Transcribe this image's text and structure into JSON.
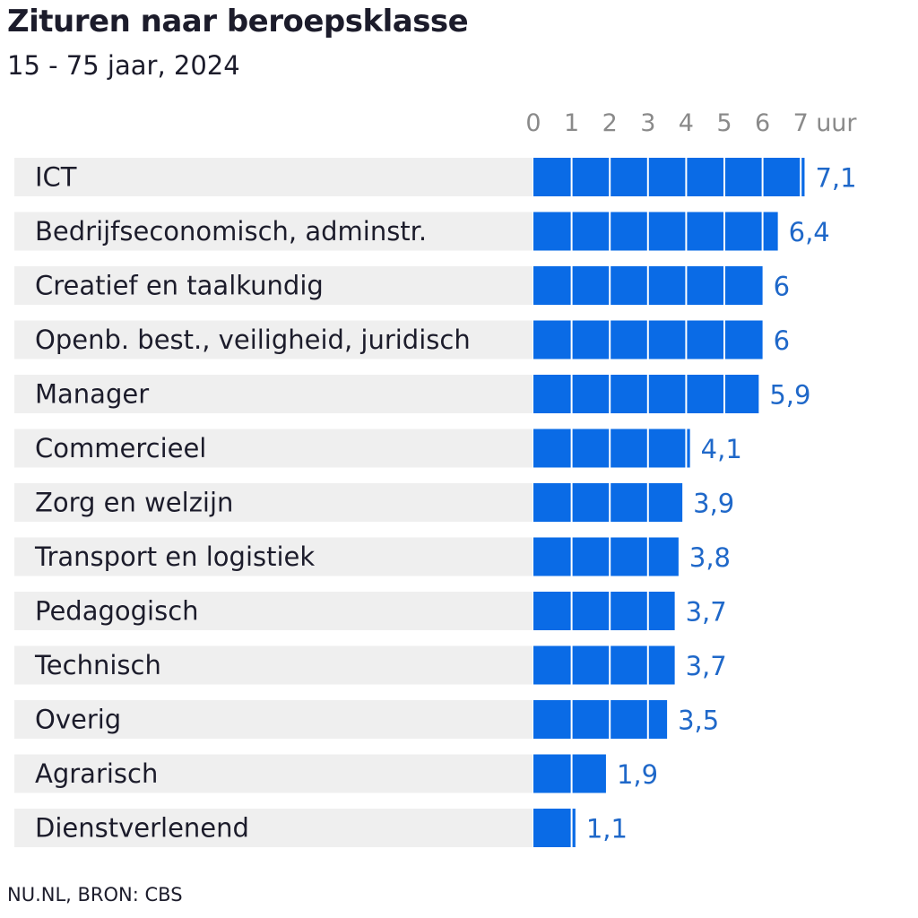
{
  "title": "Zituren naar beroepsklasse",
  "subtitle": "15 - 75 jaar, 2024",
  "source": "NU.NL, BRON: CBS",
  "chart_data": {
    "type": "bar",
    "orientation": "horizontal",
    "categories": [
      "ICT",
      "Bedrijfseconomisch, adminstr.",
      "Creatief en taalkundig",
      "Openb. best., veiligheid, juridisch",
      "Manager",
      "Commercieel",
      "Zorg en welzijn",
      "Transport en logistiek",
      "Pedagogisch",
      "Technisch",
      "Overig",
      "Agrarisch",
      "Dienstverlenend"
    ],
    "values": [
      7.1,
      6.4,
      6,
      6,
      5.9,
      4.1,
      3.9,
      3.8,
      3.7,
      3.7,
      3.5,
      1.9,
      1.1
    ],
    "value_labels": [
      "7,1",
      "6,4",
      "6",
      "6",
      "5,9",
      "4,1",
      "3,9",
      "3,8",
      "3,7",
      "3,7",
      "3,5",
      "1,9",
      "1,1"
    ],
    "x_ticks": [
      "0",
      "1",
      "2",
      "3",
      "4",
      "5",
      "6",
      "7"
    ],
    "x_unit": "uur",
    "xlim": [
      0,
      7
    ],
    "axis_position": "top",
    "bar_color": "#0a6be6",
    "row_background_color": "#efefef",
    "value_label_color": "#1f68c9",
    "grid": false
  }
}
